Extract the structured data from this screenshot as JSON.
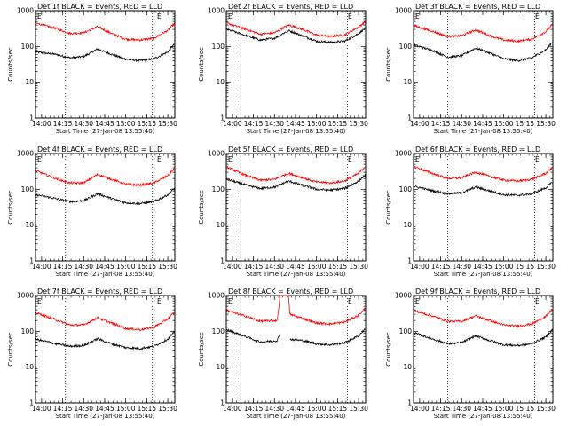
{
  "chart_data": [
    {
      "type": "line",
      "title": "Det 1f BLACK = Events, RED = LLD",
      "xlabel": "Start Time (27-Jan-08 13:55:40)",
      "ylabel": "Counts/sec",
      "x_ticks": [
        "14:00",
        "14:15",
        "14:30",
        "14:45",
        "15:00",
        "15:15",
        "15:30"
      ],
      "y_ticks": [
        "1",
        "10",
        "100",
        "1000"
      ],
      "yscale": "log",
      "ylim": [
        1,
        1000
      ],
      "xlim": [
        "13:55:40",
        "15:35:00"
      ],
      "grid": false,
      "vlines": [
        "14:17",
        "15:19"
      ],
      "corner_glyphs": [
        "E",
        "E"
      ],
      "series": [
        {
          "color": "#000000",
          "x": [
            "13:56",
            "14:10",
            "14:20",
            "14:30",
            "14:40",
            "14:50",
            "15:00",
            "15:10",
            "15:20",
            "15:30",
            "15:35"
          ],
          "values": [
            70,
            60,
            48,
            52,
            85,
            60,
            44,
            40,
            45,
            70,
            120
          ]
        },
        {
          "color": "#ff0000",
          "x": [
            "13:56",
            "14:10",
            "14:20",
            "14:30",
            "14:40",
            "14:50",
            "15:00",
            "15:10",
            "15:20",
            "15:30",
            "15:35"
          ],
          "values": [
            450,
            320,
            230,
            240,
            360,
            230,
            160,
            150,
            170,
            280,
            450
          ]
        }
      ]
    },
    {
      "type": "line",
      "title": "Det 2f BLACK = Events, RED = LLD",
      "xlabel": "Start Time (27-Jan-08 13:55:40)",
      "ylabel": "Counts/sec",
      "x_ticks": [
        "14:00",
        "14:15",
        "14:30",
        "14:45",
        "15:00",
        "15:15",
        "15:30"
      ],
      "y_ticks": [
        "1",
        "10",
        "100",
        "1000"
      ],
      "yscale": "log",
      "ylim": [
        1,
        1000
      ],
      "xlim": [
        "13:55:40",
        "15:35:00"
      ],
      "grid": false,
      "vlines": [
        "14:06",
        "15:22"
      ],
      "corner_glyphs": [
        "E",
        "E"
      ],
      "series": [
        {
          "color": "#000000",
          "x": [
            "13:56",
            "14:10",
            "14:20",
            "14:30",
            "14:40",
            "14:50",
            "15:00",
            "15:10",
            "15:20",
            "15:30",
            "15:35"
          ],
          "values": [
            300,
            200,
            150,
            170,
            280,
            200,
            140,
            130,
            140,
            230,
            330
          ]
        },
        {
          "color": "#ff0000",
          "x": [
            "13:56",
            "14:10",
            "14:20",
            "14:30",
            "14:40",
            "14:50",
            "15:00",
            "15:10",
            "15:20",
            "15:30",
            "15:35"
          ],
          "values": [
            450,
            300,
            220,
            240,
            400,
            300,
            210,
            190,
            210,
            350,
            500
          ]
        }
      ]
    },
    {
      "type": "line",
      "title": "Det 3f BLACK = Events, RED = LLD",
      "xlabel": "Start Time (27-Jan-08 13:55:40)",
      "ylabel": "Counts/sec",
      "x_ticks": [
        "14:00",
        "14:15",
        "14:30",
        "14:45",
        "15:00",
        "15:15",
        "15:30"
      ],
      "y_ticks": [
        "1",
        "10",
        "100",
        "1000"
      ],
      "yscale": "log",
      "ylim": [
        1,
        1000
      ],
      "xlim": [
        "13:55:40",
        "15:35:00"
      ],
      "grid": false,
      "vlines": [
        "14:20",
        "15:22"
      ],
      "corner_glyphs": [
        "E",
        "E"
      ],
      "series": [
        {
          "color": "#000000",
          "x": [
            "13:56",
            "14:10",
            "14:20",
            "14:30",
            "14:40",
            "14:50",
            "15:00",
            "15:10",
            "15:20",
            "15:30",
            "15:35"
          ],
          "values": [
            110,
            75,
            50,
            55,
            90,
            65,
            45,
            40,
            48,
            80,
            140
          ]
        },
        {
          "color": "#ff0000",
          "x": [
            "13:56",
            "14:10",
            "14:20",
            "14:30",
            "14:40",
            "14:50",
            "15:00",
            "15:10",
            "15:20",
            "15:30",
            "15:35"
          ],
          "values": [
            380,
            260,
            190,
            200,
            290,
            200,
            150,
            140,
            160,
            260,
            420
          ]
        }
      ]
    },
    {
      "type": "line",
      "title": "Det 4f BLACK = Events, RED = LLD",
      "xlabel": "Start Time (27-Jan-08 13:55:40)",
      "ylabel": "Counts/sec",
      "x_ticks": [
        "14:00",
        "14:15",
        "14:30",
        "14:45",
        "15:00",
        "15:15",
        "15:30"
      ],
      "y_ticks": [
        "1",
        "10",
        "100",
        "1000"
      ],
      "yscale": "log",
      "ylim": [
        1,
        1000
      ],
      "xlim": [
        "13:55:40",
        "15:35:00"
      ],
      "grid": false,
      "vlines": [
        "14:17",
        "15:19"
      ],
      "corner_glyphs": [
        "E",
        "E"
      ],
      "series": [
        {
          "color": "#000000",
          "x": [
            "13:56",
            "14:10",
            "14:20",
            "14:30",
            "14:40",
            "14:50",
            "15:00",
            "15:10",
            "15:20",
            "15:30",
            "15:35"
          ],
          "values": [
            70,
            55,
            45,
            48,
            75,
            55,
            42,
            40,
            45,
            70,
            110
          ]
        },
        {
          "color": "#ff0000",
          "x": [
            "13:56",
            "14:10",
            "14:20",
            "14:30",
            "14:40",
            "14:50",
            "15:00",
            "15:10",
            "15:20",
            "15:30",
            "15:35"
          ],
          "values": [
            330,
            200,
            150,
            150,
            260,
            190,
            140,
            130,
            150,
            240,
            400
          ]
        }
      ]
    },
    {
      "type": "line",
      "title": "Det 5f BLACK = Events, RED = LLD",
      "xlabel": "Start Time (27-Jan-08 13:55:40)",
      "ylabel": "Counts/sec",
      "x_ticks": [
        "14:00",
        "14:15",
        "14:30",
        "14:45",
        "15:00",
        "15:15",
        "15:30"
      ],
      "y_ticks": [
        "1",
        "10",
        "100",
        "1000"
      ],
      "yscale": "log",
      "ylim": [
        1,
        1000
      ],
      "xlim": [
        "13:55:40",
        "15:35:00"
      ],
      "grid": false,
      "vlines": [
        "14:06",
        "15:22"
      ],
      "corner_glyphs": [
        "E",
        "E"
      ],
      "series": [
        {
          "color": "#000000",
          "x": [
            "13:56",
            "14:10",
            "14:20",
            "14:30",
            "14:40",
            "14:50",
            "15:00",
            "15:10",
            "15:20",
            "15:30",
            "15:35"
          ],
          "values": [
            190,
            130,
            105,
            115,
            170,
            130,
            100,
            95,
            105,
            170,
            260
          ]
        },
        {
          "color": "#ff0000",
          "x": [
            "13:56",
            "14:10",
            "14:20",
            "14:30",
            "14:40",
            "14:50",
            "15:00",
            "15:10",
            "15:20",
            "15:30",
            "15:35"
          ],
          "values": [
            420,
            240,
            180,
            190,
            280,
            210,
            160,
            150,
            170,
            280,
            450
          ]
        }
      ]
    },
    {
      "type": "line",
      "title": "Det 6f BLACK = Events, RED = LLD",
      "xlabel": "Start Time (27-Jan-08 13:55:40)",
      "ylabel": "Counts/sec",
      "x_ticks": [
        "14:00",
        "14:15",
        "14:30",
        "14:45",
        "15:00",
        "15:15",
        "15:30"
      ],
      "y_ticks": [
        "1",
        "10",
        "100",
        "1000"
      ],
      "yscale": "log",
      "ylim": [
        1,
        1000
      ],
      "xlim": [
        "13:55:40",
        "15:35:00"
      ],
      "grid": false,
      "vlines": [
        "14:20",
        "15:22"
      ],
      "corner_glyphs": [
        "E",
        "E"
      ],
      "series": [
        {
          "color": "#000000",
          "x": [
            "13:56",
            "14:10",
            "14:20",
            "14:30",
            "14:40",
            "14:50",
            "15:00",
            "15:10",
            "15:20",
            "15:30",
            "15:35"
          ],
          "values": [
            120,
            90,
            75,
            80,
            115,
            90,
            70,
            68,
            75,
            110,
            160
          ]
        },
        {
          "color": "#ff0000",
          "x": [
            "13:56",
            "14:10",
            "14:20",
            "14:30",
            "14:40",
            "14:50",
            "15:00",
            "15:10",
            "15:20",
            "15:30",
            "15:35"
          ],
          "values": [
            430,
            270,
            200,
            210,
            300,
            230,
            180,
            170,
            190,
            280,
            420
          ]
        }
      ]
    },
    {
      "type": "line",
      "title": "Det 7f BLACK = Events, RED = LLD",
      "xlabel": "Start Time (27-Jan-08 13:55:40)",
      "ylabel": "Counts/sec",
      "x_ticks": [
        "14:00",
        "14:15",
        "14:30",
        "14:45",
        "15:00",
        "15:15",
        "15:30"
      ],
      "y_ticks": [
        "1",
        "10",
        "100",
        "1000"
      ],
      "yscale": "log",
      "ylim": [
        1,
        1000
      ],
      "xlim": [
        "13:55:40",
        "15:35:00"
      ],
      "grid": false,
      "vlines": [
        "14:17",
        "15:19"
      ],
      "corner_glyphs": [
        "E",
        "E"
      ],
      "series": [
        {
          "color": "#000000",
          "x": [
            "13:56",
            "14:10",
            "14:20",
            "14:30",
            "14:40",
            "14:50",
            "15:00",
            "15:10",
            "15:20",
            "15:30",
            "15:35"
          ],
          "values": [
            60,
            45,
            38,
            40,
            62,
            45,
            35,
            33,
            38,
            60,
            100
          ]
        },
        {
          "color": "#ff0000",
          "x": [
            "13:56",
            "14:10",
            "14:20",
            "14:30",
            "14:40",
            "14:50",
            "15:00",
            "15:10",
            "15:20",
            "15:30",
            "15:35"
          ],
          "values": [
            330,
            210,
            150,
            150,
            240,
            170,
            120,
            110,
            130,
            220,
            350
          ]
        }
      ]
    },
    {
      "type": "line",
      "title": "Det 8f BLACK = Events, RED = LLD",
      "xlabel": "Start Time (27-Jan-08 13:55:40)",
      "ylabel": "Counts/sec",
      "x_ticks": [
        "14:00",
        "14:15",
        "14:30",
        "14:45",
        "15:00",
        "15:15",
        "15:30"
      ],
      "y_ticks": [
        "1",
        "10",
        "100",
        "1000"
      ],
      "yscale": "log",
      "ylim": [
        1,
        1000
      ],
      "xlim": [
        "13:55:40",
        "15:35:00"
      ],
      "grid": false,
      "vlines": [
        "14:06",
        "15:22"
      ],
      "corner_glyphs": [
        "E",
        "E"
      ],
      "series": [
        {
          "color": "#000000",
          "x": [
            "13:56",
            "14:10",
            "14:20",
            "14:32",
            "14:34",
            "14:40",
            "14:41",
            "14:50",
            "15:00",
            "15:10",
            "15:20",
            "15:30",
            "15:35"
          ],
          "values": [
            110,
            70,
            50,
            55,
            85,
            null,
            60,
            55,
            45,
            42,
            48,
            75,
            120
          ],
          "spike_x": [
            "14:34",
            "14:40"
          ]
        },
        {
          "color": "#ff0000",
          "x": [
            "13:56",
            "14:10",
            "14:20",
            "14:32",
            "14:34",
            "14:40",
            "14:41",
            "14:50",
            "15:00",
            "15:10",
            "15:20",
            "15:30",
            "15:35"
          ],
          "values": [
            380,
            260,
            190,
            200,
            1000,
            1000,
            300,
            230,
            170,
            160,
            180,
            280,
            450
          ],
          "spike_x": [
            "14:34",
            "14:40"
          ]
        }
      ]
    },
    {
      "type": "line",
      "title": "Det 9f BLACK = Events, RED = LLD",
      "xlabel": "Start Time (27-Jan-08 13:55:40)",
      "ylabel": "Counts/sec",
      "x_ticks": [
        "14:00",
        "14:15",
        "14:30",
        "14:45",
        "15:00",
        "15:15",
        "15:30"
      ],
      "y_ticks": [
        "1",
        "10",
        "100",
        "1000"
      ],
      "yscale": "log",
      "ylim": [
        1,
        1000
      ],
      "xlim": [
        "13:55:40",
        "15:35:00"
      ],
      "grid": false,
      "vlines": [
        "14:20",
        "15:22"
      ],
      "corner_glyphs": [
        "E",
        "E"
      ],
      "series": [
        {
          "color": "#000000",
          "x": [
            "13:56",
            "14:10",
            "14:20",
            "14:30",
            "14:40",
            "14:50",
            "15:00",
            "15:10",
            "15:20",
            "15:30",
            "15:35"
          ],
          "values": [
            90,
            60,
            45,
            48,
            75,
            55,
            42,
            40,
            45,
            70,
            115
          ]
        },
        {
          "color": "#ff0000",
          "x": [
            "13:56",
            "14:10",
            "14:20",
            "14:30",
            "14:40",
            "14:50",
            "15:00",
            "15:10",
            "15:20",
            "15:30",
            "15:35"
          ],
          "values": [
            380,
            260,
            190,
            190,
            270,
            200,
            150,
            140,
            160,
            260,
            430
          ]
        }
      ]
    }
  ]
}
